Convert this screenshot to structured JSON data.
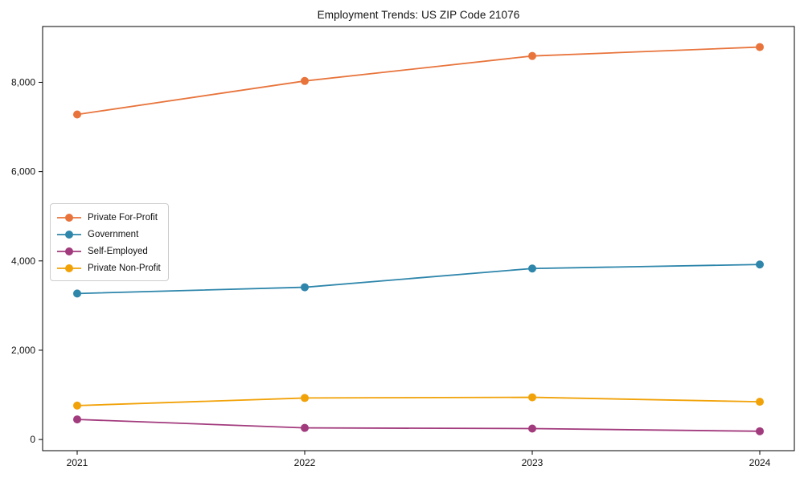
{
  "chart_data": {
    "type": "line",
    "title": "Employment Trends: US ZIP Code 21076",
    "xlabel": "",
    "ylabel": "",
    "x": [
      "2021",
      "2022",
      "2023",
      "2024"
    ],
    "series": [
      {
        "name": "Private For-Profit",
        "color": "#e8743c",
        "values": [
          7280,
          8030,
          8590,
          8790
        ]
      },
      {
        "name": "Government",
        "color": "#2e86ab",
        "values": [
          3270,
          3410,
          3830,
          3920
        ]
      },
      {
        "name": "Self-Employed",
        "color": "#a23b7d",
        "values": [
          450,
          260,
          245,
          185
        ]
      },
      {
        "name": "Private Non-Profit",
        "color": "#f1a208",
        "values": [
          760,
          930,
          945,
          845
        ]
      }
    ],
    "ylim": [
      -250,
      9250
    ],
    "yticks": [
      {
        "value": 0,
        "label": "0"
      },
      {
        "value": 2000,
        "label": "2,000"
      },
      {
        "value": 4000,
        "label": "4,000"
      },
      {
        "value": 6000,
        "label": "6,000"
      },
      {
        "value": 8000,
        "label": "8,000"
      }
    ],
    "grid": false,
    "legend_position": "center-left",
    "colors": {
      "background": "#ffffff",
      "spine": "#000000",
      "legend_border": "#cccccc",
      "text": "#111111"
    }
  }
}
